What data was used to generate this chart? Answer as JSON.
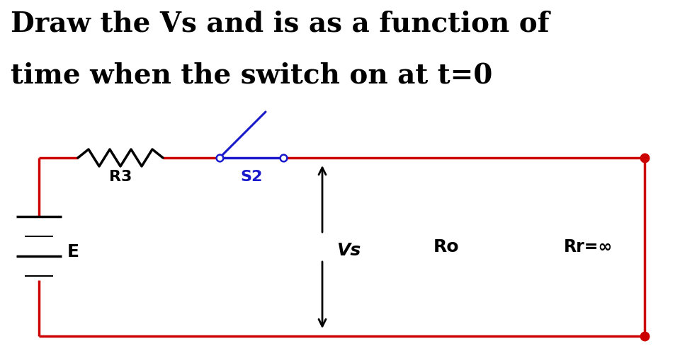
{
  "title_line1": "Draw the Vs and is as a function of",
  "title_line2": "time when the switch on at t=0",
  "bg_color": "#ffffff",
  "wire_color": "#cc0000",
  "wire_lw": 2.5,
  "resistor_color": "#000000",
  "switch_color": "#1a1acc",
  "label_R3": "R3",
  "label_S2": "S2",
  "label_Vs": "Vs",
  "label_Ro": "Ro",
  "label_Rr": "Rr=∞",
  "label_E": "E",
  "dot_color": "#cc0000",
  "arrow_color": "#000000",
  "title_fontsize": 28,
  "circuit_wire_lw": 2.5
}
